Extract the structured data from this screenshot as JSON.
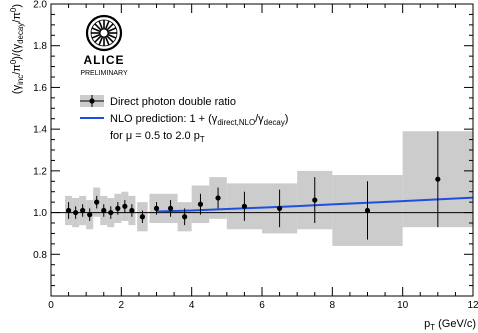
{
  "chart_data": {
    "type": "scatter",
    "title": "",
    "xlabel": {
      "main": "p",
      "sub": "T",
      "unit": " (GeV/c)"
    },
    "ylabel": {
      "parts": [
        {
          "t": "(γ",
          "s": "n"
        },
        {
          "t": "inc",
          "s": "sub"
        },
        {
          "t": "/π",
          "s": "n"
        },
        {
          "t": "0",
          "s": "sup"
        },
        {
          "t": ")/(γ",
          "s": "n"
        },
        {
          "t": "decay",
          "s": "sub"
        },
        {
          "t": "/π",
          "s": "n"
        },
        {
          "t": "0",
          "s": "sup"
        },
        {
          "t": ")",
          "s": "n"
        }
      ]
    },
    "xlim": [
      0,
      12
    ],
    "ylim": [
      0.6,
      2.0
    ],
    "x_ticks": [
      0,
      2,
      4,
      6,
      8,
      10,
      12
    ],
    "x_tick_labels": [
      "0",
      "2",
      "4",
      "6",
      "8",
      "10",
      "12"
    ],
    "y_ticks": [
      0.8,
      1.0,
      1.2,
      1.4,
      1.6,
      1.8,
      2.0
    ],
    "y_tick_labels": [
      "0.8",
      "1.0",
      "1.2",
      "1.4",
      "1.6",
      "1.8",
      "2.0"
    ],
    "reference_line": 1.0,
    "grid": false,
    "legend_position": "top-left",
    "series": [
      {
        "name": "Direct photon double ratio",
        "kind": "points",
        "color": "#000000",
        "points": [
          {
            "x": 0.5,
            "y": 1.01,
            "xerr": 0.1,
            "yerr": 0.04,
            "sys": 0.07
          },
          {
            "x": 0.7,
            "y": 1.0,
            "xerr": 0.1,
            "yerr": 0.03,
            "sys": 0.07
          },
          {
            "x": 0.9,
            "y": 1.01,
            "xerr": 0.1,
            "yerr": 0.03,
            "sys": 0.07
          },
          {
            "x": 1.1,
            "y": 0.99,
            "xerr": 0.1,
            "yerr": 0.03,
            "sys": 0.07
          },
          {
            "x": 1.3,
            "y": 1.05,
            "xerr": 0.1,
            "yerr": 0.03,
            "sys": 0.07
          },
          {
            "x": 1.5,
            "y": 1.01,
            "xerr": 0.1,
            "yerr": 0.03,
            "sys": 0.07
          },
          {
            "x": 1.7,
            "y": 1.0,
            "xerr": 0.1,
            "yerr": 0.03,
            "sys": 0.07
          },
          {
            "x": 1.9,
            "y": 1.02,
            "xerr": 0.1,
            "yerr": 0.03,
            "sys": 0.07
          },
          {
            "x": 2.1,
            "y": 1.03,
            "xerr": 0.1,
            "yerr": 0.03,
            "sys": 0.07
          },
          {
            "x": 2.3,
            "y": 1.01,
            "xerr": 0.1,
            "yerr": 0.03,
            "sys": 0.07
          },
          {
            "x": 2.6,
            "y": 0.98,
            "xerr": 0.15,
            "yerr": 0.03,
            "sys": 0.07
          },
          {
            "x": 3.0,
            "y": 1.02,
            "xerr": 0.2,
            "yerr": 0.03,
            "sys": 0.07
          },
          {
            "x": 3.4,
            "y": 1.02,
            "xerr": 0.2,
            "yerr": 0.04,
            "sys": 0.07
          },
          {
            "x": 3.8,
            "y": 0.98,
            "xerr": 0.2,
            "yerr": 0.04,
            "sys": 0.07
          },
          {
            "x": 4.25,
            "y": 1.04,
            "xerr": 0.25,
            "yerr": 0.05,
            "sys": 0.09
          },
          {
            "x": 4.75,
            "y": 1.07,
            "xerr": 0.25,
            "yerr": 0.05,
            "sys": 0.1
          },
          {
            "x": 5.5,
            "y": 1.03,
            "xerr": 0.5,
            "yerr": 0.07,
            "sys": 0.11
          },
          {
            "x": 6.5,
            "y": 1.02,
            "xerr": 0.5,
            "yerr": 0.09,
            "sys": 0.12
          },
          {
            "x": 7.5,
            "y": 1.06,
            "xerr": 0.5,
            "yerr": 0.11,
            "sys": 0.14
          },
          {
            "x": 9.0,
            "y": 1.01,
            "xerr": 1.0,
            "yerr": 0.14,
            "sys": 0.17
          },
          {
            "x": 11.0,
            "y": 1.16,
            "xerr": 1.0,
            "yerr": 0.23,
            "sys": 0.23
          }
        ]
      },
      {
        "name": "NLO prediction",
        "kind": "line",
        "color": "#1f4fe0",
        "x": [
          3.0,
          4.0,
          5.0,
          6.0,
          7.0,
          8.0,
          9.0,
          10.0,
          11.0,
          12.0
        ],
        "y": [
          1.005,
          1.01,
          1.017,
          1.024,
          1.031,
          1.039,
          1.047,
          1.055,
          1.063,
          1.072
        ]
      }
    ],
    "legend": {
      "entry1": "Direct photon double ratio",
      "entry2_parts": [
        {
          "t": "NLO prediction: 1 + (γ",
          "s": "n"
        },
        {
          "t": "direct,NLO",
          "s": "sub"
        },
        {
          "t": "/γ",
          "s": "n"
        },
        {
          "t": "decay",
          "s": "sub"
        },
        {
          "t": ")",
          "s": "n"
        }
      ],
      "entry3_parts": [
        {
          "t": "for μ = 0.5 to 2.0 p",
          "s": "n"
        },
        {
          "t": "T",
          "s": "sub"
        }
      ]
    },
    "logo": {
      "name": "ALICE",
      "subtitle": "PRELIMINARY",
      "icon": "alice-logo-icon"
    },
    "colors": {
      "systematic_band": "#cccccc",
      "axis": "#000000"
    }
  }
}
